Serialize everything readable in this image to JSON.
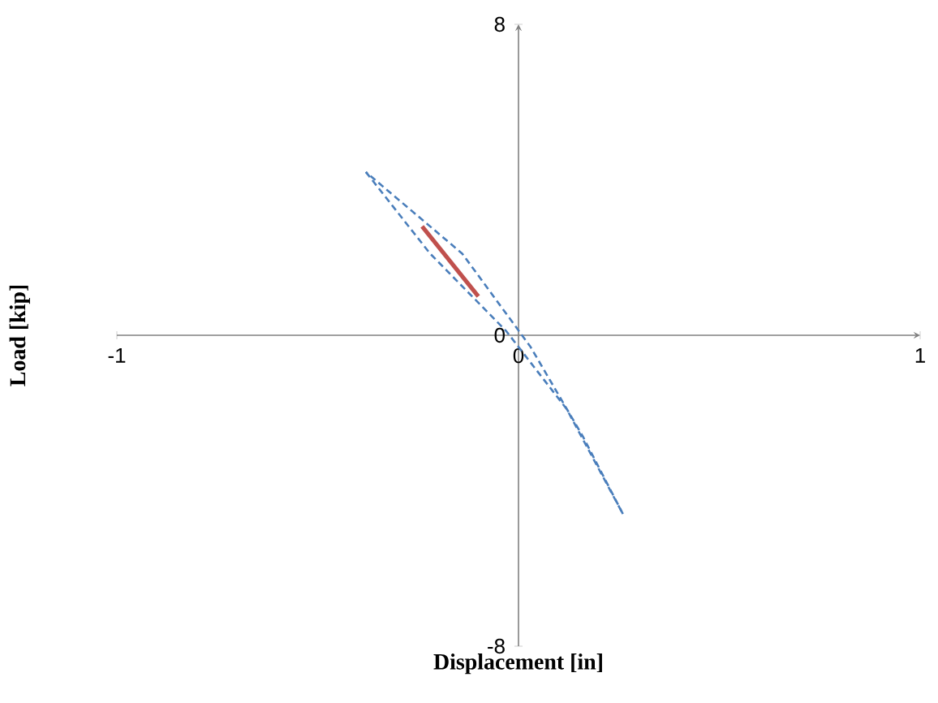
{
  "chart_data": {
    "type": "line",
    "xlabel": "Displacement [in]",
    "ylabel": "Load [kip]",
    "xlim": [
      -1,
      1
    ],
    "ylim": [
      -8,
      8
    ],
    "xticks": [
      -1,
      0,
      1
    ],
    "yticks": [
      -8,
      0,
      8
    ],
    "grid": false,
    "marker": "none",
    "series": [
      {
        "color": "#4a7ebb",
        "line_style": "dashed",
        "x": [
          -0.38,
          -0.22,
          -0.03,
          0.12,
          0.26
        ],
        "values": [
          4.2,
          2.1,
          0.1,
          -1.9,
          -4.6
        ]
      },
      {
        "color": "#4a7ebb",
        "line_style": "dashed",
        "x": [
          0.26,
          0.16,
          0.03,
          -0.14,
          -0.38
        ],
        "values": [
          -4.6,
          -2.6,
          -0.3,
          2.1,
          4.2
        ]
      },
      {
        "color": "#c0504d",
        "line_style": "solid",
        "x": [
          -0.24,
          -0.1
        ],
        "values": [
          2.8,
          1.0
        ]
      }
    ]
  }
}
